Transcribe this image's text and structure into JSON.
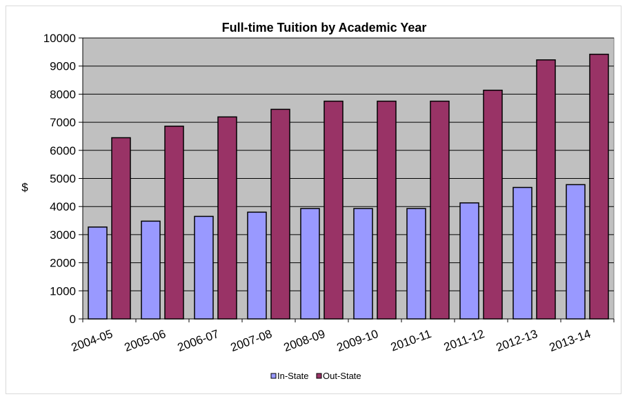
{
  "chart_data": {
    "type": "bar",
    "title": "Full-time Tuition by Academic Year",
    "xlabel": "",
    "ylabel": "$",
    "ylim": [
      0,
      10000
    ],
    "yticks": [
      0,
      1000,
      2000,
      3000,
      4000,
      5000,
      6000,
      7000,
      8000,
      9000,
      10000
    ],
    "grid": true,
    "legend_position": "bottom",
    "categories": [
      "2004-05",
      "2005-06",
      "2006-07",
      "2007-08",
      "2008-09",
      "2009-10",
      "2010-11",
      "2011-12",
      "2012-13",
      "2013-14"
    ],
    "series": [
      {
        "name": "In-State",
        "color": "#9999ff",
        "values": [
          3270,
          3480,
          3650,
          3800,
          3930,
          3930,
          3930,
          4130,
          4680,
          4780
        ]
      },
      {
        "name": "Out-State",
        "color": "#993366",
        "values": [
          6450,
          6860,
          7190,
          7460,
          7750,
          7750,
          7750,
          8140,
          9220,
          9420
        ]
      }
    ],
    "plot_background": "#c0c0c0"
  }
}
